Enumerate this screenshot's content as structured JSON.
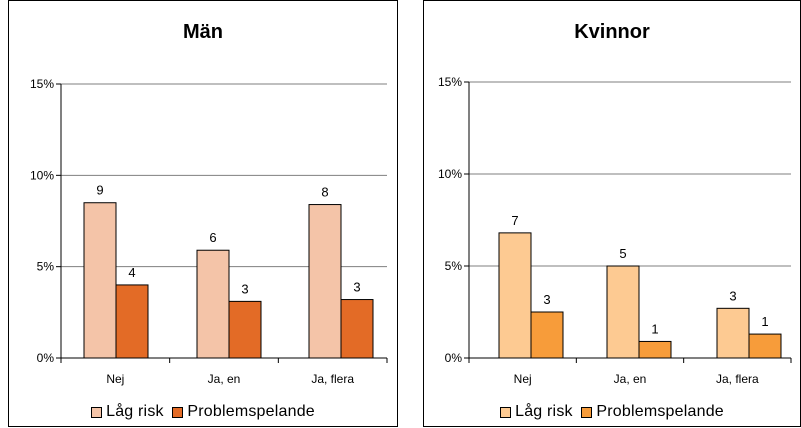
{
  "chart_data": [
    {
      "type": "bar",
      "title": "Män",
      "categories": [
        "Nej",
        "Ja, en",
        "Ja, flera"
      ],
      "y_ticks": [
        "0%",
        "5%",
        "10%",
        "15%"
      ],
      "ylim": [
        0,
        15
      ],
      "grid": true,
      "legend_position": "bottom",
      "series": [
        {
          "name": "Låg risk",
          "color": "#F4C4A8",
          "values": [
            8.5,
            5.9,
            8.4
          ],
          "labels": [
            "9",
            "6",
            "8"
          ]
        },
        {
          "name": "Problemspelande",
          "color": "#E36B26",
          "values": [
            4.0,
            3.1,
            3.2
          ],
          "labels": [
            "4",
            "3",
            "3"
          ]
        }
      ]
    },
    {
      "type": "bar",
      "title": "Kvinnor",
      "categories": [
        "Nej",
        "Ja, en",
        "Ja, flera"
      ],
      "y_ticks": [
        "0%",
        "5%",
        "10%",
        "15%"
      ],
      "ylim": [
        0,
        15
      ],
      "grid": true,
      "legend_position": "bottom",
      "series": [
        {
          "name": "Låg risk",
          "color": "#FDCA92",
          "values": [
            6.8,
            5.0,
            2.7
          ],
          "labels": [
            "7",
            "5",
            "3"
          ]
        },
        {
          "name": "Problemspelande",
          "color": "#F79C3A",
          "values": [
            2.5,
            0.9,
            1.3
          ],
          "labels": [
            "3",
            "1",
            "1"
          ]
        }
      ]
    }
  ]
}
